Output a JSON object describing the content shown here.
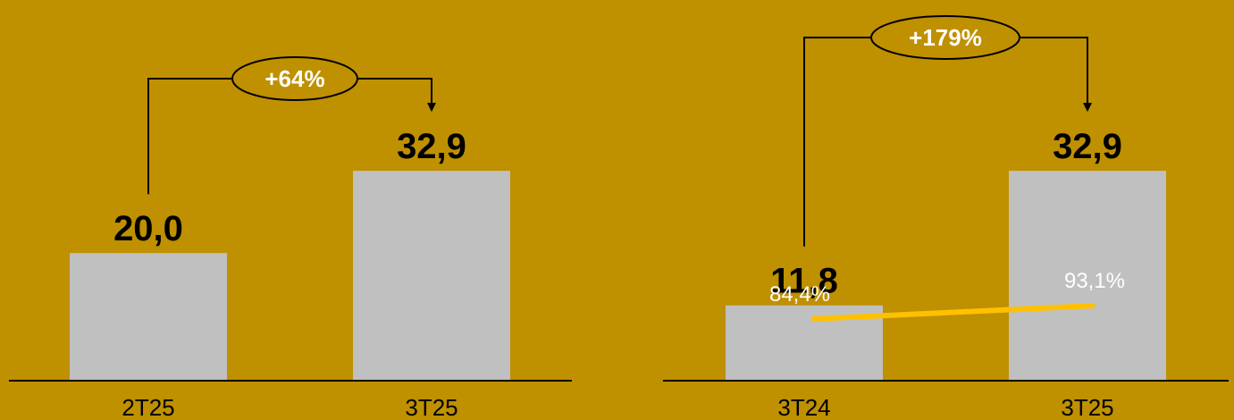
{
  "colors": {
    "background": "#BF9000",
    "bar": "#C0C0C0",
    "line": "#FFC000",
    "text": "#000000",
    "annotation_text": "#FFFFFF"
  },
  "chart_data": [
    {
      "type": "bar",
      "title": "",
      "xlabel": "",
      "ylabel": "",
      "categories": [
        "2T25",
        "3T25"
      ],
      "values": [
        20.0,
        32.9
      ],
      "value_labels": [
        "20,0",
        "32,9"
      ],
      "ylim": [
        0,
        45
      ],
      "grid": false,
      "legend": "none",
      "change_label": "+64%"
    },
    {
      "type": "bar",
      "title": "",
      "xlabel": "",
      "ylabel": "",
      "categories": [
        "3T24",
        "3T25"
      ],
      "values": [
        11.8,
        32.9
      ],
      "value_labels": [
        "11,8",
        "32,9"
      ],
      "ylim": [
        0,
        45
      ],
      "grid": false,
      "legend": "none",
      "change_label": "+179%",
      "line_series": {
        "values": [
          84.4,
          93.1
        ],
        "value_labels": [
          "84,4%",
          "93,1%"
        ],
        "ylim": [
          0,
          100
        ]
      }
    }
  ]
}
